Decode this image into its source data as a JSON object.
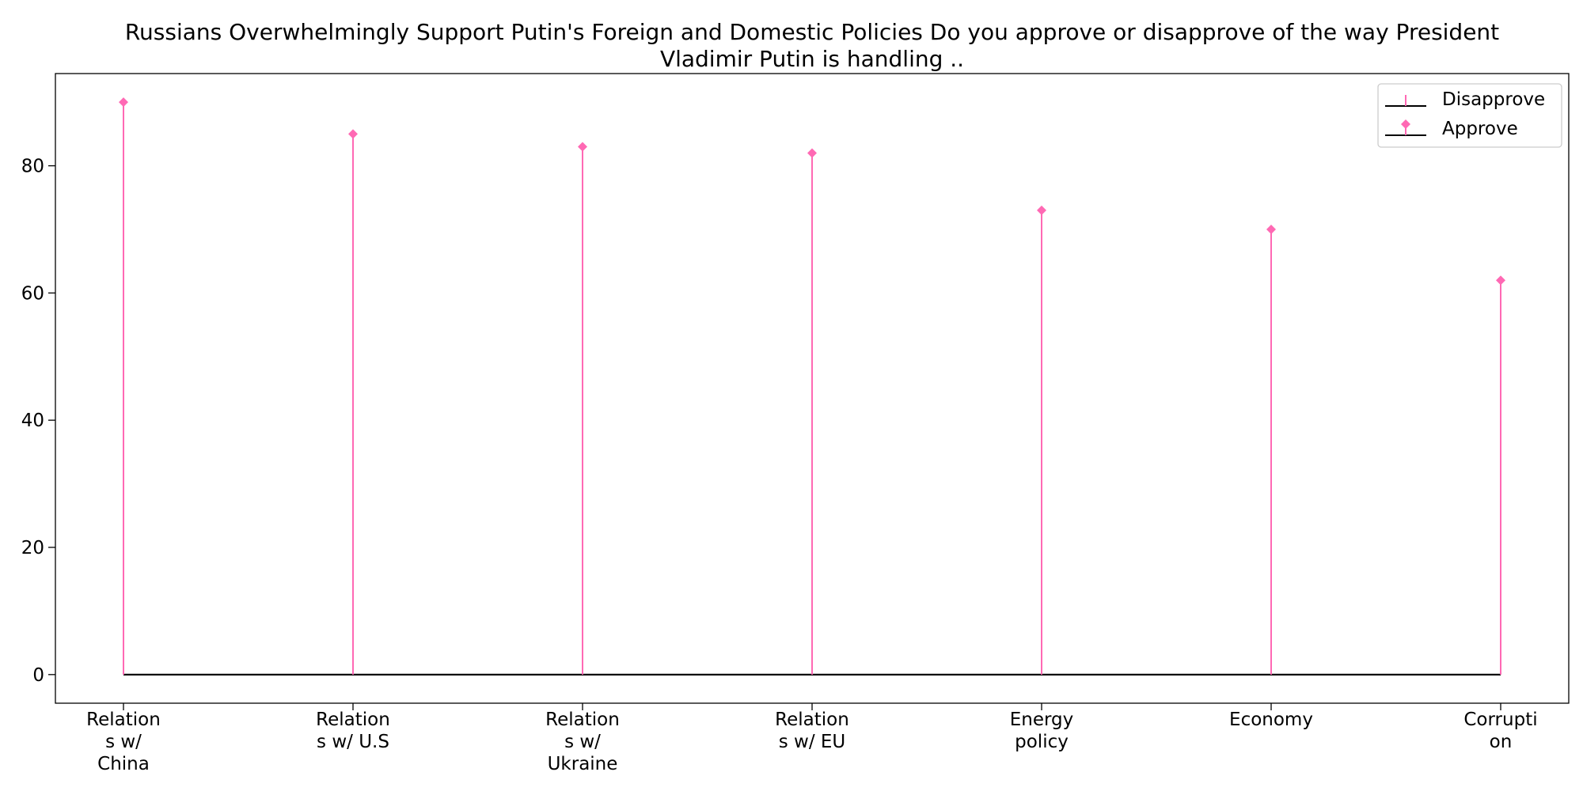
{
  "chart_data": {
    "type": "stem",
    "title_lines": [
      "Russians Overwhelmingly Support Putin's Foreign and Domestic Policies Do you approve or disapprove of the way President",
      "Vladimir Putin is handling .."
    ],
    "categories": [
      [
        "Relation",
        "s w/",
        "China"
      ],
      [
        "Relation",
        "s w/ U.S"
      ],
      [
        "Relation",
        "s w/",
        "Ukraine"
      ],
      [
        "Relation",
        "s w/ EU"
      ],
      [
        "Energy",
        "policy"
      ],
      [
        "Economy"
      ],
      [
        "Corrupti",
        "on"
      ]
    ],
    "series": [
      {
        "name": "Disapprove",
        "values": [
          0,
          0,
          0,
          0,
          0,
          0,
          0
        ],
        "color": "#ff69b4",
        "marker": "line",
        "baseline_color": "#000000"
      },
      {
        "name": "Approve",
        "values": [
          90,
          85,
          83,
          82,
          73,
          70,
          62
        ],
        "color": "#ff69b4",
        "marker": "diamond",
        "baseline_color": "#000000"
      }
    ],
    "ylim": [
      -4.5,
      94.5
    ],
    "yticks": [
      0,
      20,
      40,
      60,
      80
    ],
    "xlabel": "",
    "ylabel": "",
    "grid": false,
    "legend_position": "top-right",
    "stem_color": "#ff69b4",
    "baseline_color": "#000000"
  }
}
